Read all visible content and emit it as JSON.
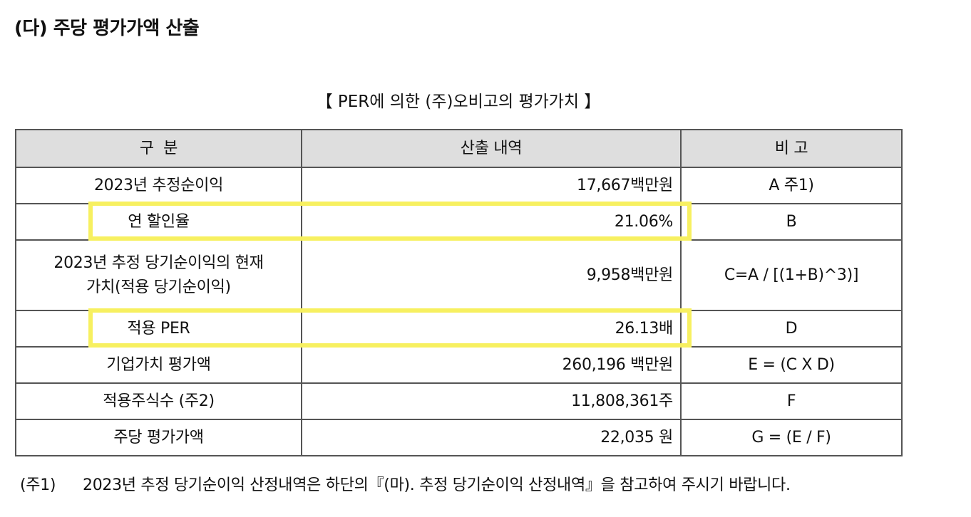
{
  "section_title": "(다) 주당 평가가액 산출",
  "table_caption": "【 PER에 의한 (주)오비고의 평가가치 】",
  "table": {
    "headers": [
      "구  분",
      "산출 내역",
      "비 고"
    ],
    "rows": [
      {
        "label": "2023년 추정순이익",
        "value": "17,667백만원",
        "note": "A 주1)"
      },
      {
        "label": "연 할인율",
        "value": "21.06%",
        "note": "B",
        "highlighted": true
      },
      {
        "label_lines": [
          "2023년 추정 당기순이익의 현재",
          "가치(적용 당기순이익)"
        ],
        "value": "9,958백만원",
        "note": "C=A / [(1+B)^3)]"
      },
      {
        "label": "적용 PER",
        "value": "26.13배",
        "note": "D",
        "highlighted": true
      },
      {
        "label": "기업가치 평가액",
        "value": "260,196 백만원",
        "note": "E = (C X D)"
      },
      {
        "label": "적용주식수 (주2)",
        "value": "11,808,361주",
        "note": "F"
      },
      {
        "label": "주당 평가가액",
        "value": "22,035 원",
        "note": "G = (E / F)"
      }
    ]
  },
  "footnote": {
    "marker": "(주1)",
    "text": "2023년 추정 당기순이익 산정내역은 하단의『(마). 추정 당기순이익 산정내역』을 참고하여 주시기 바랍니다."
  },
  "colors": {
    "header_bg": "#dedede",
    "highlight": "#f7f060",
    "border": "#555555"
  }
}
